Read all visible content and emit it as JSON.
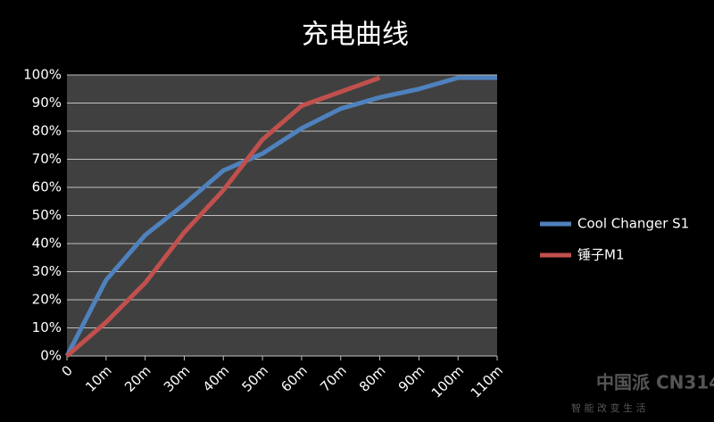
{
  "chart_data": {
    "type": "line",
    "title": "充电曲线",
    "categories": [
      "0",
      "10m",
      "20m",
      "30m",
      "40m",
      "50m",
      "60m",
      "70m",
      "80m",
      "90m",
      "100m",
      "110m"
    ],
    "series": [
      {
        "name": "Cool Changer S1",
        "color": "#4f81bd",
        "values": [
          0,
          27,
          43,
          54,
          66,
          72,
          81,
          88,
          92,
          95,
          99,
          99
        ]
      },
      {
        "name": "锤子M1",
        "color": "#c0504d",
        "values": [
          0,
          12,
          26,
          44,
          59,
          77,
          89,
          94,
          99,
          null,
          null,
          null
        ]
      }
    ],
    "ylim": [
      0,
      100
    ],
    "yticks": [
      {
        "value": 0,
        "label": "0%"
      },
      {
        "value": 10,
        "label": "10%"
      },
      {
        "value": 20,
        "label": "20%"
      },
      {
        "value": 30,
        "label": "30%"
      },
      {
        "value": 40,
        "label": "40%"
      },
      {
        "value": 50,
        "label": "50%"
      },
      {
        "value": 60,
        "label": "60%"
      },
      {
        "value": 70,
        "label": "70%"
      },
      {
        "value": 80,
        "label": "80%"
      },
      {
        "value": 90,
        "label": "90%"
      },
      {
        "value": 100,
        "label": "100%"
      }
    ],
    "grid": true,
    "legend": "right",
    "watermark": {
      "brand": "中国派",
      "code": "CN314",
      "slogan": "智 能 改 变 生 活"
    }
  }
}
